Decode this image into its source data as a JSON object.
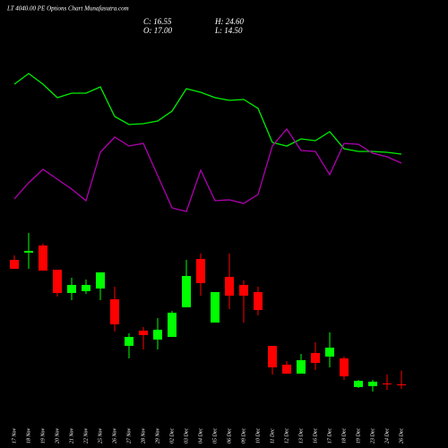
{
  "chart_data": {
    "type": "candlestick",
    "title": "LT 4040.00 PE Options Chart Munafasutra.com",
    "summary": [
      {
        "value": 16.55,
        "label": "C: 16.55"
      },
      {
        "value": 24.6,
        "label": "H: 24.60"
      },
      {
        "value": 17.0,
        "label": "O: 17.00"
      },
      {
        "value": 14.5,
        "label": "L: 14.50"
      }
    ],
    "categories": [
      "17 Nov",
      "18 Nov",
      "19 Nov",
      "20 Nov",
      "21 Nov",
      "22 Nov",
      "25 Nov",
      "26 Nov",
      "27 Nov",
      "28 Nov",
      "29 Nov",
      "02 Dec",
      "03 Dec",
      "04 Dec",
      "05 Dec",
      "06 Dec",
      "09 Dec",
      "10 Dec",
      "11 Dec",
      "12 Dec",
      "13 Dec",
      "16 Dec",
      "17 Dec",
      "18 Dec",
      "19 Dec",
      "23 Dec",
      "24 Dec",
      "26 Dec"
    ],
    "open": [
      86.5,
      90.5,
      94.5,
      81,
      68,
      69,
      70.5,
      64.5,
      38.5,
      47,
      42,
      43.5,
      60,
      87,
      51.5,
      77,
      72.5,
      68.5,
      38.5,
      28,
      23,
      34.5,
      32.5,
      31.5,
      15.5,
      16,
      17.5,
      17.0
    ],
    "high": [
      89,
      101.5,
      95.5,
      81,
      76.5,
      75.5,
      79.5,
      71.5,
      45.5,
      49,
      54,
      58,
      86.5,
      90,
      68.5,
      90,
      75,
      71.5,
      38.5,
      30,
      34,
      40.5,
      46,
      32.5,
      19.5,
      19.5,
      22.5,
      24.6
    ],
    "low": [
      81.5,
      81.5,
      80.5,
      66,
      64,
      67.5,
      64,
      46.5,
      31.5,
      36.5,
      36.5,
      43.5,
      60,
      66.5,
      51.5,
      59,
      51.5,
      55.5,
      22.5,
      23,
      23,
      25,
      26.5,
      19.5,
      15,
      13,
      14,
      14.5
    ],
    "close": [
      81.5,
      91.5,
      80.5,
      68,
      72.5,
      72.5,
      79.5,
      50.5,
      43.5,
      44.5,
      47.5,
      57,
      77.5,
      73.5,
      68.5,
      66.5,
      66.5,
      58.5,
      26.5,
      23,
      30.5,
      29,
      37.5,
      21.5,
      19,
      18.5,
      17,
      16.55
    ],
    "ylim": [
      -18.5,
      231.5
    ],
    "up_color": "#00ff00",
    "down_color": "#ff0000",
    "lines": {
      "ylim": [
        0,
        500
      ],
      "series": [
        {
          "color": "#00ee00",
          "values": [
            406,
            418,
            406,
            391,
            396,
            396,
            403,
            370,
            361,
            362,
            365,
            376,
            401,
            397,
            391,
            388,
            389,
            379,
            341,
            337,
            345,
            343,
            353,
            334,
            331,
            331,
            330,
            328
          ]
        },
        {
          "color": "#b000b0",
          "values": [
            278,
            296,
            311,
            300,
            289,
            276,
            330,
            347,
            337,
            340,
            304,
            268,
            264,
            310,
            276,
            277,
            273,
            283,
            337,
            356,
            332,
            331,
            305,
            340,
            339,
            329,
            325,
            318
          ]
        }
      ]
    }
  }
}
